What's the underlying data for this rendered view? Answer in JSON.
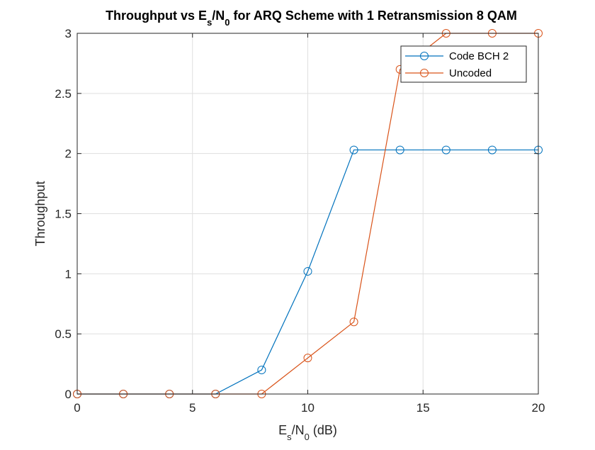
{
  "chart_data": {
    "type": "line",
    "title": {
      "parts": [
        {
          "text": "Throughput vs E",
          "style": "normal"
        },
        {
          "text": "s",
          "style": "sub"
        },
        {
          "text": "/N",
          "style": "normal"
        },
        {
          "text": "0",
          "style": "sub"
        },
        {
          "text": " for ARQ Scheme with 1 Retransmission 8 QAM",
          "style": "normal"
        }
      ]
    },
    "xlabel": {
      "parts": [
        {
          "text": "E",
          "style": "normal"
        },
        {
          "text": "s",
          "style": "sub"
        },
        {
          "text": "/N",
          "style": "normal"
        },
        {
          "text": "0",
          "style": "sub"
        },
        {
          "text": " (dB)",
          "style": "normal"
        }
      ]
    },
    "ylabel": "Throughput",
    "xlim": [
      0,
      20
    ],
    "ylim": [
      0,
      3
    ],
    "xticks": [
      0,
      5,
      10,
      15,
      20
    ],
    "yticks": [
      0,
      0.5,
      1,
      1.5,
      2,
      2.5,
      3
    ],
    "xtick_labels": [
      "0",
      "5",
      "10",
      "15",
      "20"
    ],
    "ytick_labels": [
      "0",
      "0.5",
      "1",
      "1.5",
      "2",
      "2.5",
      "3"
    ],
    "grid": true,
    "legend_position": "top-right",
    "x": [
      0,
      2,
      4,
      6,
      8,
      10,
      12,
      14,
      16,
      18,
      20
    ],
    "series": [
      {
        "name": "Code BCH 2",
        "color": "#0072BD",
        "marker": "circle",
        "values": [
          0,
          0,
          0,
          0,
          0.2,
          1.02,
          2.03,
          2.03,
          2.03,
          2.03,
          2.03
        ]
      },
      {
        "name": "Uncoded",
        "color": "#D95319",
        "marker": "circle",
        "values": [
          0,
          0,
          0,
          0,
          0,
          0.3,
          0.6,
          2.7,
          3.0,
          3.0,
          3.0
        ]
      }
    ]
  }
}
